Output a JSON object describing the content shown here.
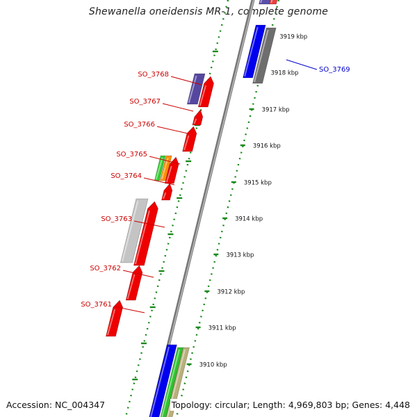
{
  "title": "Shewanella oneidensis MR-1, complete genome",
  "footer": {
    "accession": "Accession: NC_004347",
    "summary": "Topology: circular; Length: 4,969,803 bp; Genes: 4,448"
  },
  "colors": {
    "backbone": "#8c8c8c",
    "minus_strand_gene": "#ee0000",
    "plus_strand_gene": "#0000ee",
    "tick_marks": "#1a8a1a",
    "label_minus": "#cc0000",
    "label_plus": "#0000cc"
  },
  "ticks": [
    {
      "label": "3919 kbp"
    },
    {
      "label": "3918 kbp"
    },
    {
      "label": "3917 kbp"
    },
    {
      "label": "3916 kbp"
    },
    {
      "label": "3915 kbp"
    },
    {
      "label": "3914 kbp"
    },
    {
      "label": "3913 kbp"
    },
    {
      "label": "3912 kbp"
    },
    {
      "label": "3911 kbp"
    },
    {
      "label": "3910 kbp"
    }
  ],
  "gene_labels": [
    {
      "text": "SO_3769",
      "strand": "plus"
    },
    {
      "text": "SO_3768",
      "strand": "minus"
    },
    {
      "text": "SO_3767",
      "strand": "minus"
    },
    {
      "text": "SO_3766",
      "strand": "minus"
    },
    {
      "text": "SO_3765",
      "strand": "minus"
    },
    {
      "text": "SO_3764",
      "strand": "minus"
    },
    {
      "text": "SO_3763",
      "strand": "minus"
    },
    {
      "text": "SO_3762",
      "strand": "minus"
    },
    {
      "text": "SO_3761",
      "strand": "minus"
    }
  ]
}
